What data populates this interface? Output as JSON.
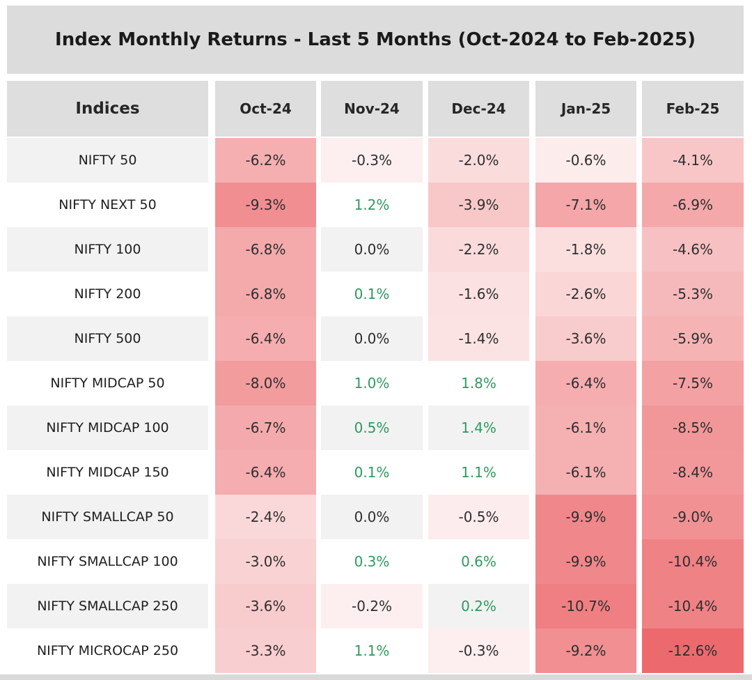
{
  "chart_data": {
    "type": "table",
    "title": "Index Monthly Returns - Last 5 Months (Oct-2024 to Feb-2025)",
    "row_header_label": "Indices",
    "columns": [
      "Oct-24",
      "Nov-24",
      "Dec-24",
      "Jan-25",
      "Feb-25"
    ],
    "rows": [
      {
        "index": "NIFTY 50",
        "values": [
          "-6.2%",
          "-0.3%",
          "-2.0%",
          "-0.6%",
          "-4.1%"
        ]
      },
      {
        "index": "NIFTY NEXT 50",
        "values": [
          "-9.3%",
          "1.2%",
          "-3.9%",
          "-7.1%",
          "-6.9%"
        ]
      },
      {
        "index": "NIFTY 100",
        "values": [
          "-6.8%",
          "0.0%",
          "-2.2%",
          "-1.8%",
          "-4.6%"
        ]
      },
      {
        "index": "NIFTY 200",
        "values": [
          "-6.8%",
          "0.1%",
          "-1.6%",
          "-2.6%",
          "-5.3%"
        ]
      },
      {
        "index": "NIFTY 500",
        "values": [
          "-6.4%",
          "0.0%",
          "-1.4%",
          "-3.6%",
          "-5.9%"
        ]
      },
      {
        "index": "NIFTY MIDCAP 50",
        "values": [
          "-8.0%",
          "1.0%",
          "1.8%",
          "-6.4%",
          "-7.5%"
        ]
      },
      {
        "index": "NIFTY MIDCAP 100",
        "values": [
          "-6.7%",
          "0.5%",
          "1.4%",
          "-6.1%",
          "-8.5%"
        ]
      },
      {
        "index": "NIFTY MIDCAP 150",
        "values": [
          "-6.4%",
          "0.1%",
          "1.1%",
          "-6.1%",
          "-8.4%"
        ]
      },
      {
        "index": "NIFTY SMALLCAP 50",
        "values": [
          "-2.4%",
          "0.0%",
          "-0.5%",
          "-9.9%",
          "-9.0%"
        ]
      },
      {
        "index": "NIFTY SMALLCAP 100",
        "values": [
          "-3.0%",
          "0.3%",
          "0.6%",
          "-9.9%",
          "-10.4%"
        ]
      },
      {
        "index": "NIFTY SMALLCAP 250",
        "values": [
          "-3.6%",
          "-0.2%",
          "0.2%",
          "-10.7%",
          "-10.4%"
        ]
      },
      {
        "index": "NIFTY MICROCAP 250",
        "values": [
          "-3.3%",
          "1.1%",
          "-0.3%",
          "-9.2%",
          "-12.6%"
        ]
      }
    ]
  },
  "colors": {
    "header_bg": "#dedede",
    "row_band_bg": "#f2f2f2",
    "row_plain_bg": "#ffffff",
    "positive_text": "#2e9a5e",
    "negative_heat_max": "#ea5a5e"
  }
}
